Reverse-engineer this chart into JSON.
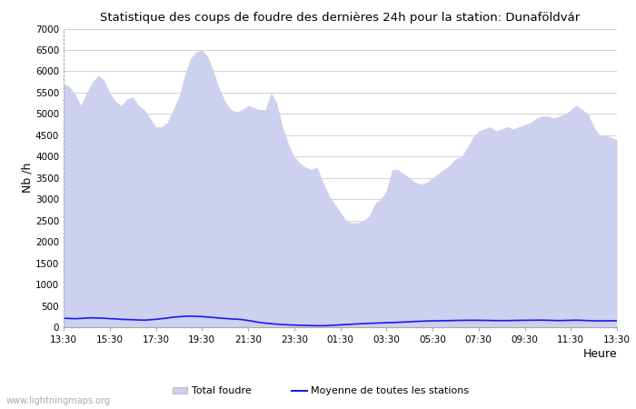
{
  "title": "Statistique des coups de foudre des dernières 24h pour la station: Dunaföldvár",
  "xlabel": "Heure",
  "ylabel": "Nb /h",
  "x_ticks": [
    "13:30",
    "15:30",
    "17:30",
    "19:30",
    "21:30",
    "23:30",
    "01:30",
    "03:30",
    "05:30",
    "07:30",
    "09:30",
    "11:30",
    "13:30"
  ],
  "ylim": [
    0,
    7000
  ],
  "yticks": [
    0,
    500,
    1000,
    1500,
    2000,
    2500,
    3000,
    3500,
    4000,
    4500,
    5000,
    5500,
    6000,
    6500,
    7000
  ],
  "total_foudre_color": "#cdd0ee",
  "moyenne_color": "#1a1aee",
  "background_color": "#ffffff",
  "grid_color": "#cccccc",
  "watermark": "www.lightningmaps.org",
  "legend_total": "Total foudre",
  "legend_moyenne": "Moyenne de toutes les stations",
  "total_y": [
    5700,
    5650,
    5450,
    5200,
    5500,
    5750,
    5900,
    5800,
    5500,
    5300,
    5200,
    5350,
    5400,
    5200,
    5100,
    4900,
    4700,
    4700,
    4800,
    5100,
    5400,
    5900,
    6300,
    6450,
    6500,
    6350,
    6000,
    5600,
    5300,
    5100,
    5050,
    5100,
    5200,
    5150,
    5100,
    5100,
    5500,
    5250,
    4700,
    4300,
    4000,
    3850,
    3750,
    3700,
    3750,
    3400,
    3100,
    2900,
    2700,
    2500,
    2450,
    2450,
    2500,
    2600,
    2900,
    3000,
    3200,
    3700,
    3700,
    3600,
    3500,
    3400,
    3350,
    3400,
    3500,
    3600,
    3700,
    3800,
    3950,
    4000,
    4200,
    4450,
    4600,
    4650,
    4700,
    4600,
    4650,
    4700,
    4650,
    4700,
    4750,
    4800,
    4900,
    4950,
    4950,
    4900,
    4950,
    5000,
    5100,
    5200,
    5100,
    5000,
    4700,
    4500,
    4500,
    4450,
    4400
  ],
  "moyenne_y": [
    210,
    205,
    200,
    205,
    215,
    220,
    215,
    210,
    200,
    195,
    185,
    180,
    175,
    170,
    165,
    175,
    185,
    200,
    215,
    235,
    245,
    255,
    260,
    255,
    248,
    238,
    228,
    215,
    205,
    195,
    188,
    178,
    158,
    135,
    112,
    95,
    82,
    72,
    62,
    55,
    50,
    45,
    42,
    38,
    35,
    35,
    40,
    48,
    55,
    62,
    70,
    78,
    85,
    90,
    95,
    100,
    105,
    110,
    115,
    120,
    128,
    135,
    140,
    145,
    148,
    150,
    152,
    155,
    158,
    160,
    162,
    163,
    162,
    160,
    158,
    155,
    155,
    155,
    158,
    160,
    162,
    163,
    165,
    165,
    162,
    158,
    155,
    158,
    162,
    165,
    160,
    155,
    150,
    148,
    150,
    152,
    148
  ]
}
